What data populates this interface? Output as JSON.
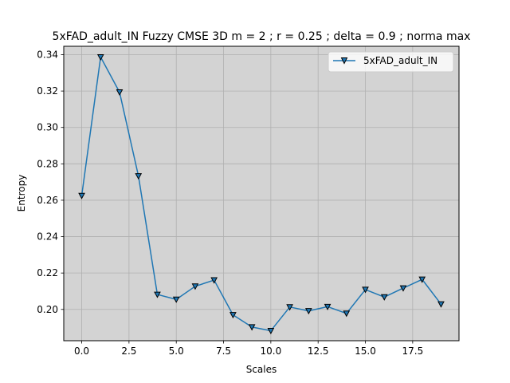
{
  "chart_data": {
    "type": "line",
    "title": "5xFAD_adult_IN Fuzzy CMSE 3D m = 2 ; r = 0.25 ; delta = 0.9 ; norma max",
    "xlabel": "Scales",
    "ylabel": "Entropy",
    "xlim": [
      -0.95,
      19.95
    ],
    "ylim": [
      0.1828,
      0.3446
    ],
    "x_ticks": [
      0,
      2.5,
      5,
      7.5,
      10,
      12.5,
      15,
      17.5
    ],
    "x_tick_labels": [
      "0.0",
      "2.5",
      "5.0",
      "7.5",
      "10.0",
      "12.5",
      "15.0",
      "17.5"
    ],
    "y_ticks": [
      0.2,
      0.22,
      0.24,
      0.26,
      0.28,
      0.3,
      0.32,
      0.34
    ],
    "y_tick_labels": [
      "0.20",
      "0.22",
      "0.24",
      "0.26",
      "0.28",
      "0.30",
      "0.32",
      "0.34"
    ],
    "grid": true,
    "background": "#d3d3d3",
    "legend_position": "top-right",
    "series": [
      {
        "name": "5xFAD_adult_IN",
        "color": "#1f77b4",
        "marker": "triangle-down",
        "marker_face": "#1f77b4",
        "marker_edge": "#000000",
        "x": [
          0,
          1,
          2,
          3,
          4,
          5,
          6,
          7,
          8,
          9,
          10,
          11,
          12,
          13,
          14,
          15,
          16,
          17,
          18,
          19
        ],
        "values": [
          0.2625,
          0.3387,
          0.3194,
          0.2733,
          0.2082,
          0.2055,
          0.2127,
          0.2161,
          0.197,
          0.1903,
          0.1883,
          0.2013,
          0.1992,
          0.2015,
          0.1978,
          0.2109,
          0.2068,
          0.2117,
          0.2165,
          0.2029
        ]
      }
    ]
  }
}
